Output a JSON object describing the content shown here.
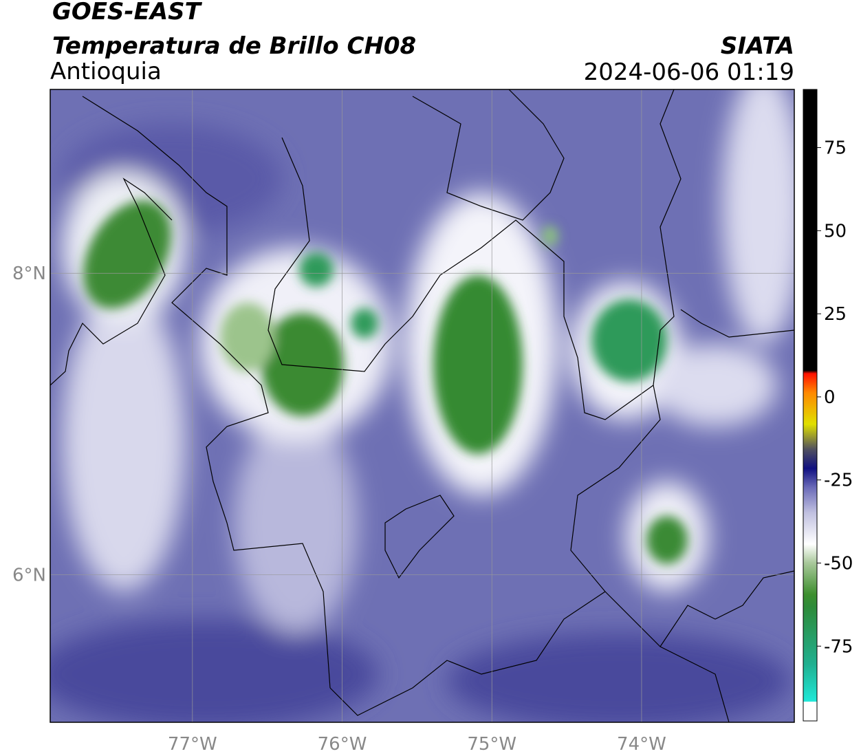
{
  "header": {
    "title": "GOES-EAST",
    "subtitle": "Temperatura de Brillo CH08",
    "region": "Antioquia",
    "source": "SIATA",
    "datetime": "2024-06-06 01:19"
  },
  "map": {
    "xlim": [
      -77.95,
      -72.98
    ],
    "ylim": [
      5.02,
      9.22
    ],
    "xticks": [
      {
        "value": -77,
        "label": "77°W"
      },
      {
        "value": -76,
        "label": "76°W"
      },
      {
        "value": -75,
        "label": "75°W"
      },
      {
        "value": -74,
        "label": "74°W"
      }
    ],
    "yticks": [
      {
        "value": 6,
        "label": "6°N"
      },
      {
        "value": 8,
        "label": "8°N"
      }
    ],
    "grid": true
  },
  "colorbar": {
    "lim": [
      -97.5,
      92.5
    ],
    "ticks": [
      75,
      50,
      25,
      0,
      -25,
      -50,
      -75
    ]
  }
}
